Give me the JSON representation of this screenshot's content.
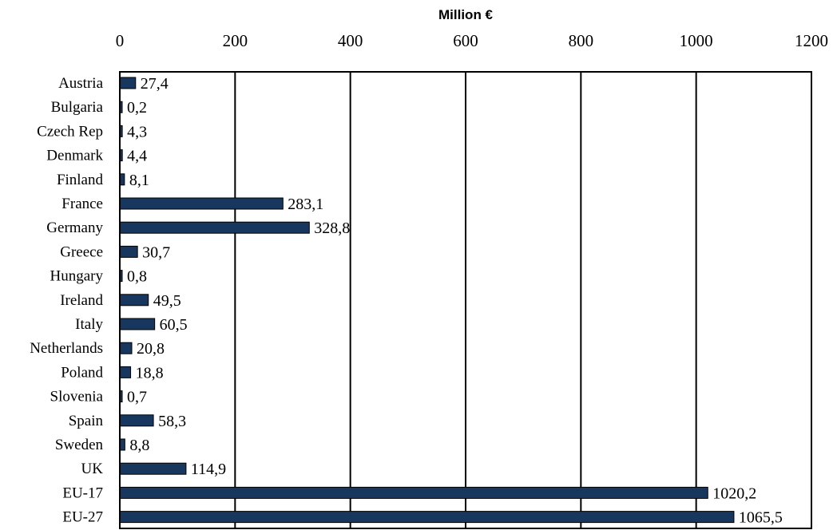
{
  "chart_data": {
    "type": "bar",
    "orientation": "horizontal",
    "title": "",
    "xlabel": "Million €",
    "ylabel": "",
    "xlim": [
      0,
      1200
    ],
    "x_ticks": [
      0,
      200,
      400,
      600,
      800,
      1000,
      1200
    ],
    "grid": true,
    "legend": "none",
    "bar_color": "#17375e",
    "categories": [
      "Austria",
      "Bulgaria",
      "Czech Rep",
      "Denmark",
      "Finland",
      "France",
      "Germany",
      "Greece",
      "Hungary",
      "Ireland",
      "Italy",
      "Netherlands",
      "Poland",
      "Slovenia",
      "Spain",
      "Sweden",
      "UK",
      "EU-17",
      "EU-27"
    ],
    "values": [
      27.4,
      0.2,
      4.3,
      4.4,
      8.1,
      283.1,
      328.8,
      30.7,
      0.8,
      49.5,
      60.5,
      20.8,
      18.8,
      0.7,
      58.3,
      8.8,
      114.9,
      1020.2,
      1065.5
    ],
    "value_labels": [
      "27,4",
      "0,2",
      "4,3",
      "4,4",
      "8,1",
      "283,1",
      "328,8",
      "30,7",
      "0,8",
      "49,5",
      "60,5",
      "20,8",
      "18,8",
      "0,7",
      "58,3",
      "8,8",
      "114,9",
      "1020,2",
      "1065,5"
    ]
  }
}
